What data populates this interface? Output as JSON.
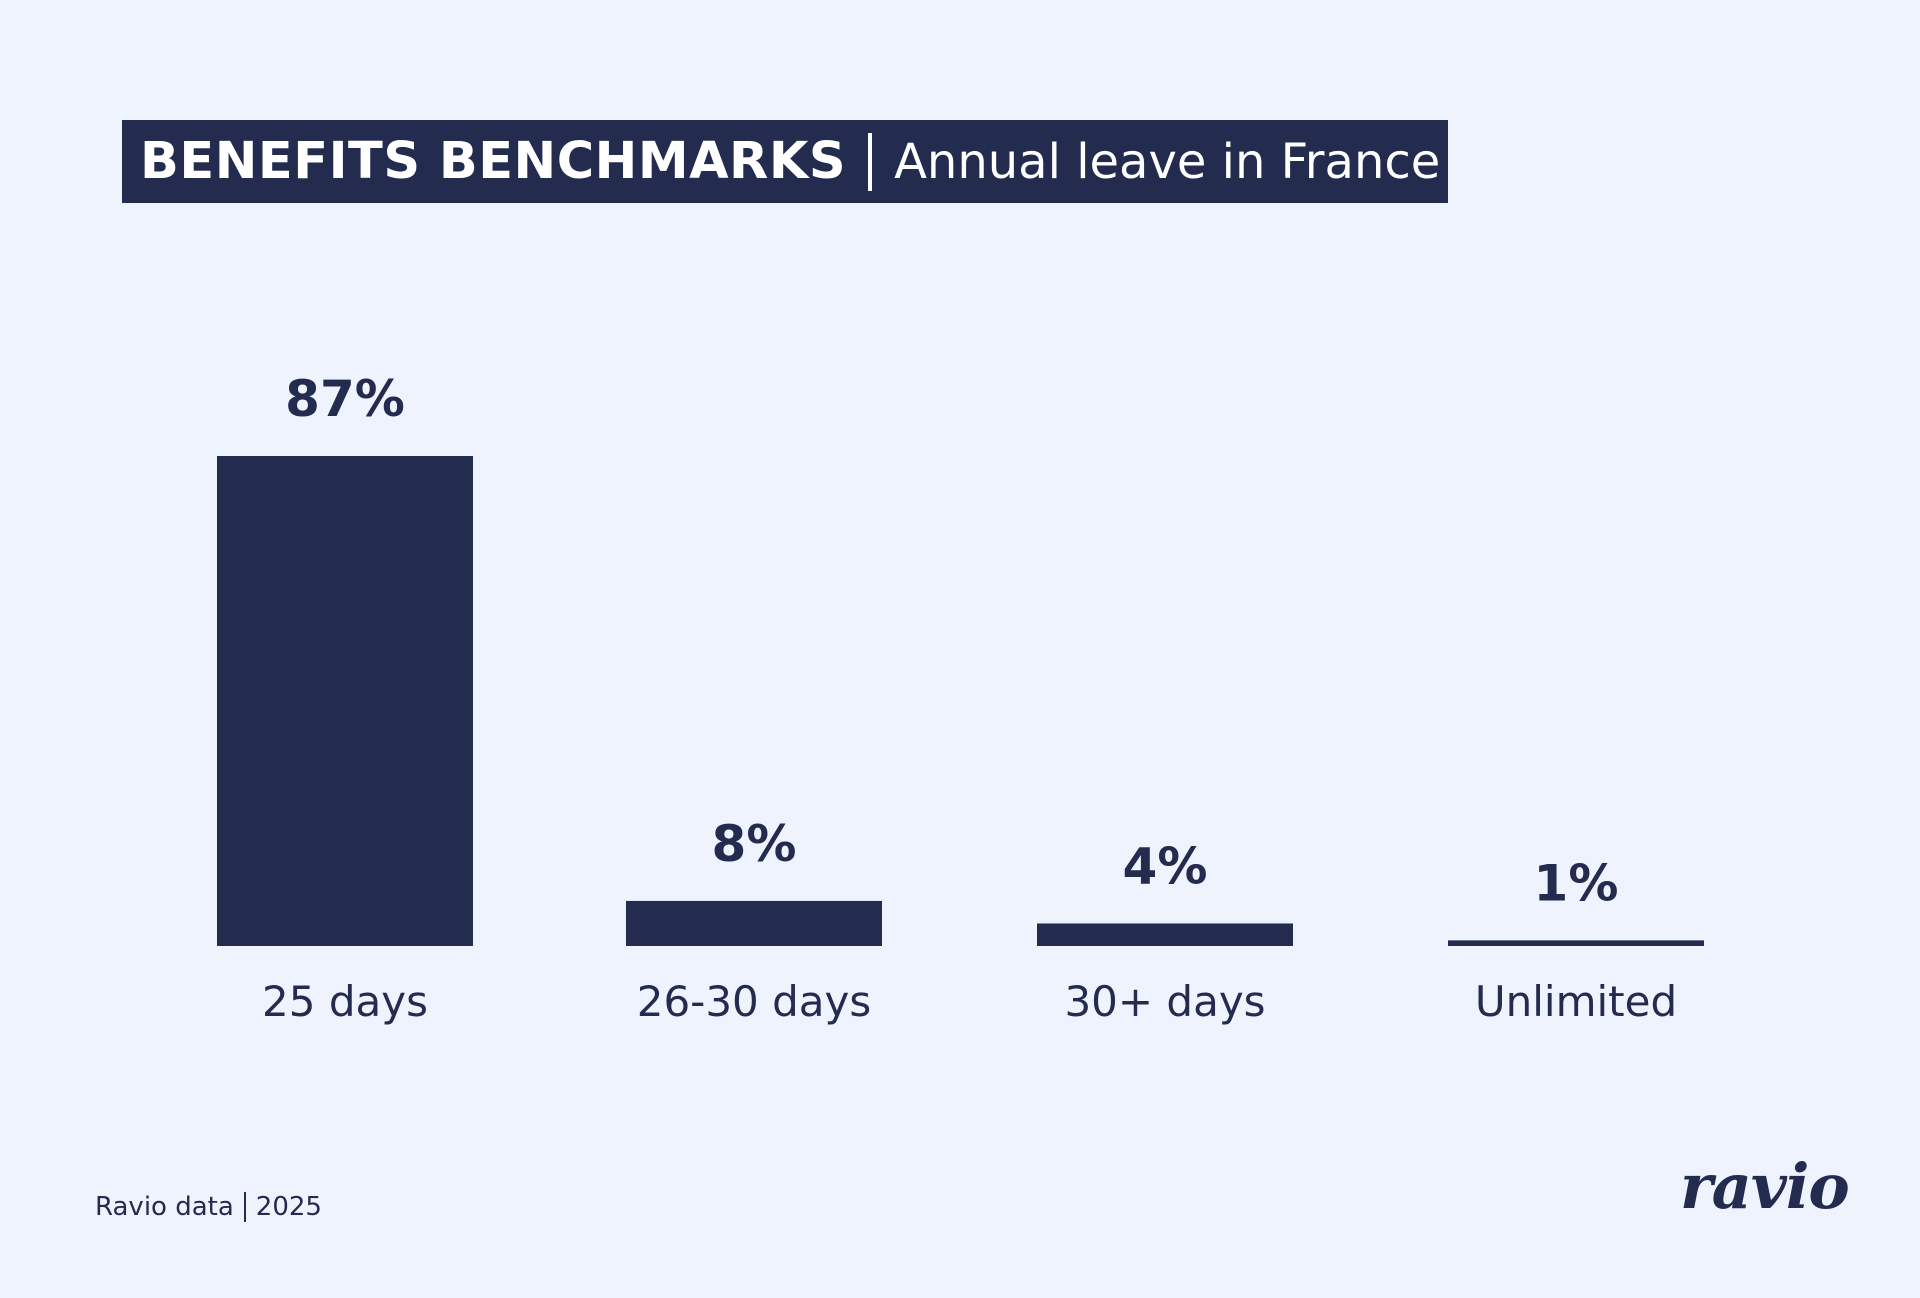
{
  "header": {
    "title": "BENEFITS BENCHMARKS",
    "subtitle": "Annual leave in France"
  },
  "chart_data": {
    "type": "bar",
    "title": "BENEFITS BENCHMARKS",
    "subtitle": "Annual leave in France",
    "categories": [
      "25 days",
      "26-30 days",
      "30+ days",
      "Unlimited"
    ],
    "values": [
      87,
      8,
      4,
      1
    ],
    "value_labels": [
      "87%",
      "8%",
      "4%",
      "1%"
    ],
    "unit": "%",
    "ylim": [
      0,
      87
    ],
    "grid": false,
    "legend": "none",
    "bar_color": "#232b4f"
  },
  "footer": {
    "source": "Ravio data",
    "year": "2025",
    "logo": "ravio"
  },
  "colors": {
    "background": "#eef3fd",
    "primary": "#232b4f"
  }
}
